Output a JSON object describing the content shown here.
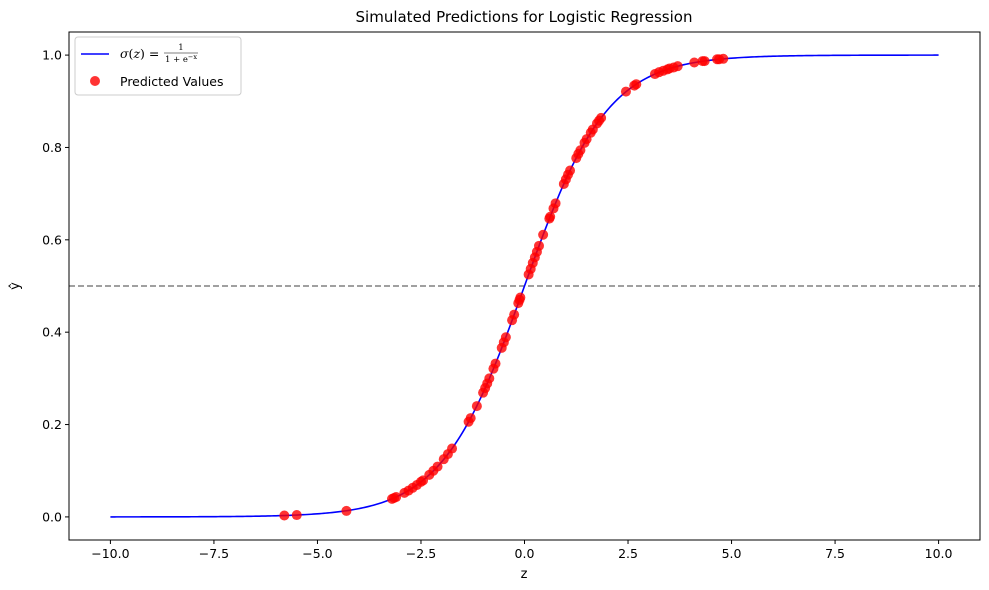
{
  "chart_data": {
    "type": "scatter",
    "title": "Simulated Predictions for Logistic Regression",
    "xlabel": "z",
    "ylabel": "ŷ",
    "xlim": [
      -11,
      11
    ],
    "ylim": [
      -0.05,
      1.05
    ],
    "x_ticks": [
      -10.0,
      -7.5,
      -5.0,
      -2.5,
      0.0,
      2.5,
      5.0,
      7.5,
      10.0
    ],
    "x_tick_labels": [
      "−10.0",
      "−7.5",
      "−5.0",
      "−2.5",
      "0.0",
      "2.5",
      "5.0",
      "7.5",
      "10.0"
    ],
    "y_ticks": [
      0.0,
      0.2,
      0.4,
      0.6,
      0.8,
      1.0
    ],
    "y_tick_labels": [
      "0.0",
      "0.2",
      "0.4",
      "0.6",
      "0.8",
      "1.0"
    ],
    "grid": false,
    "legend_position": "top-left",
    "threshold": {
      "y": 0.5,
      "style": "dashed",
      "color": "#808080"
    },
    "series": [
      {
        "name": "σ(z) = 1 / (1 + e^−x)",
        "kind": "line",
        "color": "#0000ff",
        "function": "sigmoid",
        "x_range": [
          -10,
          10
        ]
      },
      {
        "name": "Predicted Values",
        "kind": "scatter",
        "color": "#ff0000",
        "opacity": 0.8,
        "x": [
          -5.8,
          -5.5,
          -4.3,
          -3.2,
          -3.15,
          -3.1,
          -2.9,
          -2.8,
          -2.7,
          -2.6,
          -2.5,
          -2.45,
          -2.3,
          -2.2,
          -2.1,
          -1.95,
          -1.85,
          -1.75,
          -1.35,
          -1.3,
          -1.15,
          -1.0,
          -0.95,
          -0.9,
          -0.85,
          -0.75,
          -0.7,
          -0.55,
          -0.5,
          -0.45,
          -0.3,
          -0.25,
          -0.15,
          -0.12,
          -0.1,
          0.1,
          0.15,
          0.2,
          0.25,
          0.3,
          0.35,
          0.45,
          0.6,
          0.62,
          0.7,
          0.75,
          0.95,
          1.0,
          1.05,
          1.1,
          1.25,
          1.3,
          1.35,
          1.45,
          1.5,
          1.6,
          1.65,
          1.75,
          1.8,
          1.85,
          2.45,
          2.65,
          2.7,
          3.15,
          3.25,
          3.35,
          3.45,
          3.5,
          3.6,
          3.7,
          4.1,
          4.3,
          4.35,
          4.65,
          4.7,
          4.8
        ],
        "y": [
          0.003,
          0.004,
          0.013,
          0.039,
          0.041,
          0.043,
          0.052,
          0.057,
          0.063,
          0.069,
          0.076,
          0.079,
          0.091,
          0.1,
          0.109,
          0.125,
          0.136,
          0.148,
          0.206,
          0.214,
          0.24,
          0.269,
          0.279,
          0.289,
          0.3,
          0.321,
          0.332,
          0.366,
          0.378,
          0.389,
          0.426,
          0.438,
          0.463,
          0.47,
          0.475,
          0.525,
          0.537,
          0.55,
          0.562,
          0.574,
          0.587,
          0.611,
          0.646,
          0.65,
          0.668,
          0.679,
          0.721,
          0.731,
          0.741,
          0.75,
          0.777,
          0.786,
          0.794,
          0.81,
          0.818,
          0.832,
          0.839,
          0.852,
          0.858,
          0.864,
          0.921,
          0.934,
          0.937,
          0.959,
          0.963,
          0.966,
          0.969,
          0.971,
          0.973,
          0.976,
          0.984,
          0.987,
          0.987,
          0.991,
          0.991,
          0.992
        ]
      }
    ]
  }
}
